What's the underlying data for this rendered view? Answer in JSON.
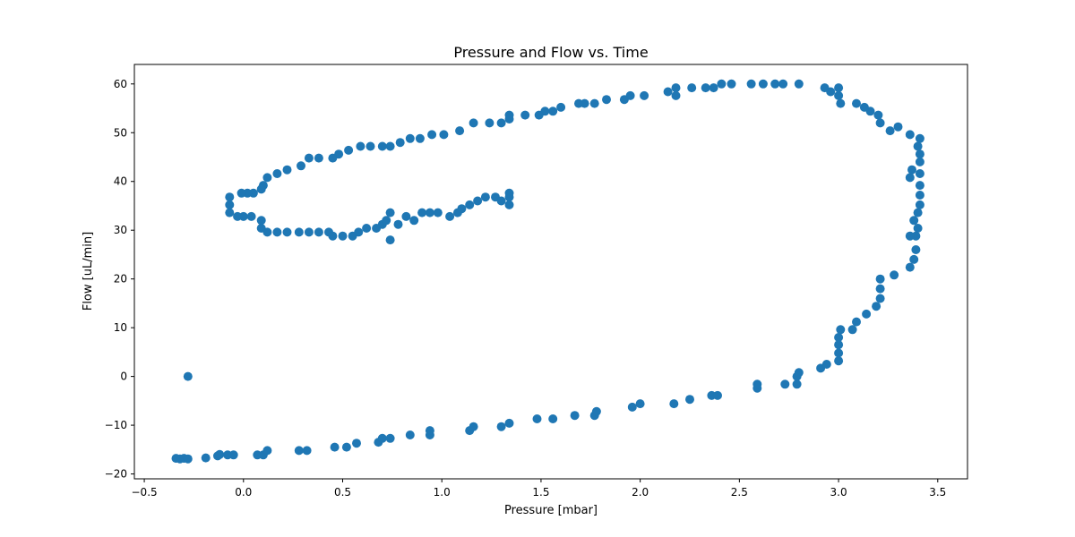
{
  "chart_data": {
    "type": "scatter",
    "title": "Pressure and Flow vs. Time",
    "xlabel": "Pressure [mbar]",
    "ylabel": "Flow [uL/min]",
    "xlim": [
      -0.55,
      3.65
    ],
    "ylim": [
      -21,
      64
    ],
    "xticks": [
      -0.5,
      0.0,
      0.5,
      1.0,
      1.5,
      2.0,
      2.5,
      3.0,
      3.5
    ],
    "xtick_labels": [
      "−0.5",
      "0.0",
      "0.5",
      "1.0",
      "1.5",
      "2.0",
      "2.5",
      "3.0",
      "3.5"
    ],
    "yticks": [
      -20,
      -10,
      0,
      10,
      20,
      30,
      40,
      50,
      60
    ],
    "ytick_labels": [
      "−20",
      "−10",
      "0",
      "10",
      "20",
      "30",
      "40",
      "50",
      "60"
    ],
    "grid": false,
    "marker_color": "#1f77b4",
    "series": [
      {
        "points": [
          [
            -0.28,
            0.0
          ],
          [
            -0.34,
            -16.8
          ],
          [
            -0.32,
            -16.9
          ],
          [
            -0.3,
            -16.8
          ],
          [
            -0.28,
            -16.9
          ],
          [
            -0.19,
            -16.7
          ],
          [
            -0.13,
            -16.3
          ],
          [
            -0.12,
            -16.0
          ],
          [
            -0.08,
            -16.1
          ],
          [
            -0.05,
            -16.1
          ],
          [
            0.07,
            -16.1
          ],
          [
            0.1,
            -16.1
          ],
          [
            0.12,
            -15.2
          ],
          [
            0.28,
            -15.2
          ],
          [
            0.32,
            -15.2
          ],
          [
            0.46,
            -14.5
          ],
          [
            0.52,
            -14.5
          ],
          [
            0.57,
            -13.7
          ],
          [
            0.68,
            -13.5
          ],
          [
            0.7,
            -12.7
          ],
          [
            0.74,
            -12.7
          ],
          [
            0.84,
            -12.0
          ],
          [
            0.94,
            -12.0
          ],
          [
            0.94,
            -11.1
          ],
          [
            1.14,
            -11.1
          ],
          [
            1.16,
            -10.3
          ],
          [
            1.3,
            -10.3
          ],
          [
            1.34,
            -9.6
          ],
          [
            1.48,
            -8.7
          ],
          [
            1.56,
            -8.7
          ],
          [
            1.67,
            -8.0
          ],
          [
            1.77,
            -8.0
          ],
          [
            1.78,
            -7.2
          ],
          [
            1.96,
            -6.3
          ],
          [
            2.0,
            -5.6
          ],
          [
            2.17,
            -5.6
          ],
          [
            2.25,
            -4.7
          ],
          [
            2.36,
            -3.9
          ],
          [
            2.39,
            -3.9
          ],
          [
            2.59,
            -2.4
          ],
          [
            2.59,
            -1.6
          ],
          [
            2.73,
            -1.6
          ],
          [
            2.79,
            -1.6
          ],
          [
            2.79,
            0.0
          ],
          [
            2.8,
            0.8
          ],
          [
            2.91,
            1.7
          ],
          [
            2.94,
            2.5
          ],
          [
            3.0,
            3.2
          ],
          [
            3.0,
            4.8
          ],
          [
            3.0,
            6.5
          ],
          [
            3.0,
            8.0
          ],
          [
            3.01,
            9.6
          ],
          [
            3.07,
            9.6
          ],
          [
            3.09,
            11.2
          ],
          [
            3.14,
            12.8
          ],
          [
            3.19,
            14.4
          ],
          [
            3.21,
            16.0
          ],
          [
            3.21,
            18.0
          ],
          [
            3.21,
            20.0
          ],
          [
            3.28,
            20.8
          ],
          [
            3.36,
            22.4
          ],
          [
            3.38,
            24.0
          ],
          [
            3.39,
            26.0
          ],
          [
            3.39,
            28.8
          ],
          [
            3.36,
            28.8
          ],
          [
            3.4,
            30.4
          ],
          [
            3.38,
            32.0
          ],
          [
            3.4,
            33.6
          ],
          [
            3.41,
            35.2
          ],
          [
            3.41,
            37.2
          ],
          [
            3.41,
            39.2
          ],
          [
            3.36,
            40.8
          ],
          [
            3.41,
            41.6
          ],
          [
            3.37,
            42.4
          ],
          [
            3.41,
            44.0
          ],
          [
            3.41,
            45.6
          ],
          [
            3.4,
            47.2
          ],
          [
            3.41,
            48.8
          ],
          [
            3.36,
            49.6
          ],
          [
            3.3,
            51.2
          ],
          [
            3.26,
            50.4
          ],
          [
            3.21,
            52.0
          ],
          [
            3.2,
            53.6
          ],
          [
            3.16,
            54.4
          ],
          [
            3.13,
            55.2
          ],
          [
            3.09,
            56.0
          ],
          [
            3.01,
            56.0
          ],
          [
            3.0,
            57.6
          ],
          [
            3.0,
            59.2
          ],
          [
            2.96,
            58.4
          ],
          [
            2.93,
            59.2
          ],
          [
            2.8,
            60.0
          ],
          [
            2.72,
            60.0
          ],
          [
            2.68,
            60.0
          ],
          [
            2.62,
            60.0
          ],
          [
            2.56,
            60.0
          ],
          [
            2.46,
            60.0
          ],
          [
            2.41,
            60.0
          ],
          [
            2.37,
            59.2
          ],
          [
            2.33,
            59.2
          ],
          [
            2.26,
            59.2
          ],
          [
            2.18,
            59.2
          ],
          [
            2.18,
            57.6
          ],
          [
            2.14,
            58.4
          ],
          [
            2.02,
            57.6
          ],
          [
            1.95,
            57.6
          ],
          [
            1.92,
            56.8
          ],
          [
            1.83,
            56.8
          ],
          [
            1.77,
            56.0
          ],
          [
            1.72,
            56.0
          ],
          [
            1.69,
            56.0
          ],
          [
            1.6,
            55.2
          ],
          [
            1.56,
            54.4
          ],
          [
            1.52,
            54.4
          ],
          [
            1.49,
            53.6
          ],
          [
            1.42,
            53.6
          ],
          [
            1.34,
            53.6
          ],
          [
            1.34,
            52.8
          ],
          [
            1.3,
            52.0
          ],
          [
            1.24,
            52.0
          ],
          [
            1.16,
            52.0
          ],
          [
            1.09,
            50.4
          ],
          [
            1.01,
            49.6
          ],
          [
            0.95,
            49.6
          ],
          [
            0.89,
            48.8
          ],
          [
            0.84,
            48.8
          ],
          [
            0.79,
            48.0
          ],
          [
            0.74,
            47.2
          ],
          [
            0.7,
            47.2
          ],
          [
            0.64,
            47.2
          ],
          [
            0.59,
            47.2
          ],
          [
            0.53,
            46.4
          ],
          [
            0.48,
            45.6
          ],
          [
            0.45,
            44.8
          ],
          [
            0.38,
            44.8
          ],
          [
            0.33,
            44.8
          ],
          [
            0.29,
            43.2
          ],
          [
            0.22,
            42.4
          ],
          [
            0.17,
            41.6
          ],
          [
            0.12,
            40.8
          ],
          [
            0.1,
            39.2
          ],
          [
            0.09,
            38.4
          ],
          [
            0.05,
            37.6
          ],
          [
            0.02,
            37.6
          ],
          [
            -0.01,
            37.6
          ],
          [
            -0.07,
            36.8
          ],
          [
            -0.07,
            35.2
          ],
          [
            -0.07,
            33.6
          ],
          [
            -0.03,
            32.8
          ],
          [
            0.0,
            32.8
          ],
          [
            0.04,
            32.8
          ],
          [
            0.09,
            32.0
          ],
          [
            0.09,
            30.4
          ],
          [
            0.12,
            29.6
          ],
          [
            0.17,
            29.6
          ],
          [
            0.22,
            29.6
          ],
          [
            0.28,
            29.6
          ],
          [
            0.33,
            29.6
          ],
          [
            0.38,
            29.6
          ],
          [
            0.43,
            29.6
          ],
          [
            0.45,
            28.8
          ],
          [
            0.5,
            28.8
          ],
          [
            0.55,
            28.8
          ],
          [
            0.58,
            29.6
          ],
          [
            0.62,
            30.4
          ],
          [
            0.67,
            30.4
          ],
          [
            0.7,
            31.2
          ],
          [
            0.72,
            32.0
          ],
          [
            0.74,
            33.6
          ],
          [
            0.74,
            28.0
          ],
          [
            0.78,
            31.2
          ],
          [
            0.82,
            32.8
          ],
          [
            0.86,
            32.0
          ],
          [
            0.9,
            33.6
          ],
          [
            0.94,
            33.6
          ],
          [
            0.98,
            33.6
          ],
          [
            1.04,
            32.8
          ],
          [
            1.08,
            33.6
          ],
          [
            1.1,
            34.4
          ],
          [
            1.14,
            35.2
          ],
          [
            1.18,
            36.0
          ],
          [
            1.22,
            36.8
          ],
          [
            1.27,
            36.8
          ],
          [
            1.3,
            36.0
          ],
          [
            1.34,
            36.8
          ],
          [
            1.34,
            35.2
          ],
          [
            1.34,
            37.6
          ]
        ]
      }
    ]
  }
}
